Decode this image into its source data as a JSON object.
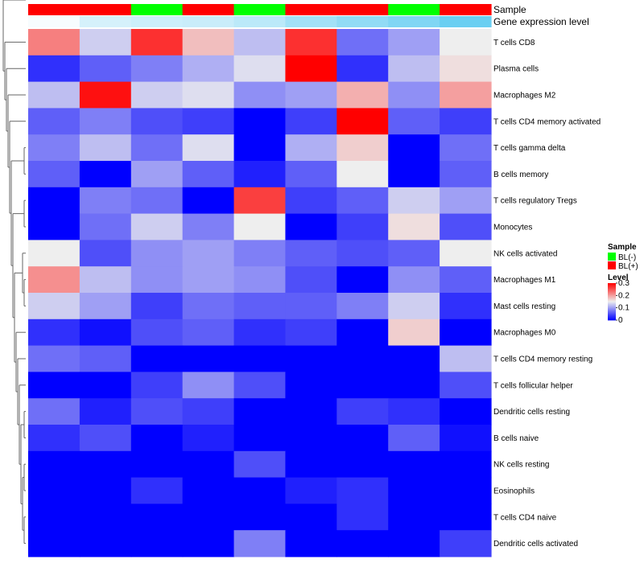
{
  "chart_data": {
    "type": "heatmap",
    "rows": [
      "T cells CD8",
      "Plasma cells",
      "Macrophages M2",
      "T cells CD4 memory activated",
      "T cells gamma delta",
      "B cells memory",
      "T cells regulatory  Tregs",
      "Monocytes",
      "NK cells activated",
      "Macrophages M1",
      "Mast cells resting",
      "Macrophages M0",
      "T cells CD4 memory resting",
      "T cells follicular helper",
      "Dendritic cells resting",
      "B cells naive",
      "NK cells resting",
      "Eosinophils",
      "T cells CD4 naive",
      "Dendritic cells activated"
    ],
    "values": [
      [
        0.22,
        0.13,
        0.27,
        0.18,
        0.12,
        0.27,
        0.07,
        0.1,
        0.15
      ],
      [
        0.03,
        0.06,
        0.08,
        0.11,
        0.14,
        0.3,
        0.03,
        0.12,
        0.16
      ],
      [
        0.12,
        0.29,
        0.13,
        0.14,
        0.09,
        0.1,
        0.19,
        0.09,
        0.2
      ],
      [
        0.06,
        0.08,
        0.05,
        0.04,
        0.0,
        0.04,
        0.3,
        0.06,
        0.04
      ],
      [
        0.08,
        0.12,
        0.07,
        0.14,
        0.0,
        0.11,
        0.17,
        0.0,
        0.07
      ],
      [
        0.06,
        0.0,
        0.1,
        0.06,
        0.02,
        0.06,
        0.15,
        0.0,
        0.06
      ],
      [
        0.0,
        0.08,
        0.07,
        0.0,
        0.26,
        0.04,
        0.06,
        0.13,
        0.1
      ],
      [
        0.0,
        0.07,
        0.13,
        0.08,
        0.15,
        0.0,
        0.04,
        0.16,
        0.05
      ],
      [
        0.15,
        0.05,
        0.09,
        0.1,
        0.08,
        0.06,
        0.05,
        0.06,
        0.15
      ],
      [
        0.21,
        0.12,
        0.09,
        0.1,
        0.09,
        0.05,
        0.0,
        0.09,
        0.06
      ],
      [
        0.13,
        0.1,
        0.04,
        0.07,
        0.06,
        0.06,
        0.08,
        0.13,
        0.03
      ],
      [
        0.03,
        0.01,
        0.05,
        0.06,
        0.03,
        0.04,
        0.0,
        0.17,
        0.0
      ],
      [
        0.07,
        0.06,
        0.0,
        0.0,
        0.0,
        0.0,
        0.0,
        0.0,
        0.12
      ],
      [
        0.0,
        0.0,
        0.04,
        0.09,
        0.05,
        0.0,
        0.0,
        0.0,
        0.05
      ],
      [
        0.07,
        0.02,
        0.05,
        0.04,
        0.0,
        0.0,
        0.04,
        0.03,
        0.0
      ],
      [
        0.03,
        0.05,
        0.0,
        0.02,
        0.0,
        0.0,
        0.0,
        0.06,
        0.01
      ],
      [
        0.0,
        0.0,
        0.0,
        0.0,
        0.05,
        0.0,
        0.0,
        0.0,
        0.0
      ],
      [
        0.0,
        0.0,
        0.03,
        0.0,
        0.0,
        0.02,
        0.03,
        0.0,
        0.0
      ],
      [
        0.0,
        0.0,
        0.0,
        0.0,
        0.0,
        0.0,
        0.03,
        0.0,
        0.0
      ],
      [
        0.0,
        0.0,
        0.0,
        0.0,
        0.08,
        0.0,
        0.0,
        0.0,
        0.04
      ]
    ],
    "column_annotations": {
      "sample": [
        "BL(+)",
        "BL(+)",
        "BL(-)",
        "BL(+)",
        "BL(-)",
        "BL(+)",
        "BL(+)",
        "BL(-)",
        "BL(+)"
      ],
      "gene_expression_level": [
        0.05,
        0.25,
        0.3,
        0.32,
        0.4,
        0.55,
        0.65,
        0.75,
        0.88
      ]
    },
    "track_labels": [
      "Sample",
      "Gene expression level"
    ],
    "legend": {
      "placement": "right",
      "sample_title": "Sample",
      "sample_entries": [
        {
          "label": "BL(-)",
          "color": "#00ff00"
        },
        {
          "label": "BL(+)",
          "color": "#ff0000"
        }
      ],
      "level_title": "Level",
      "level_ticks": [
        "0.3",
        "0.2",
        "0.1",
        "0"
      ],
      "level_tick_values": [
        0.3,
        0.2,
        0.1,
        0.0
      ]
    },
    "color_scale": {
      "low": "#0000ff",
      "mid": "#eeeeee",
      "high": "#ff0000",
      "min": 0,
      "mid_value": 0.15,
      "max": 0.3
    },
    "gene_expression_colors": {
      "low": "#ffffff",
      "high": "#56c8f0"
    },
    "dendrogram": "row",
    "grid": false
  }
}
